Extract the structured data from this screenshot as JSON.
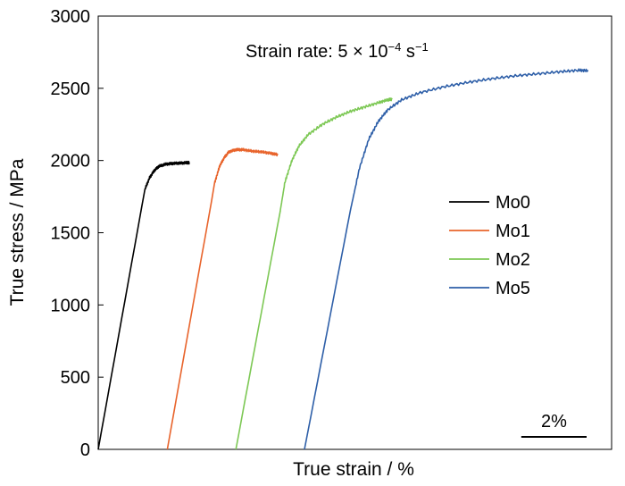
{
  "chart_data": {
    "type": "line",
    "annotation": {
      "prefix": "Strain rate: 5 × 10",
      "superscript": "−4",
      "unit": " s",
      "unit_superscript": "−1"
    },
    "xlabel": "True strain / %",
    "ylabel": "True stress / MPa",
    "ylim": [
      0,
      3000
    ],
    "xlim": [
      0,
      11
    ],
    "y_ticks": [
      0,
      500,
      1000,
      1500,
      2000,
      2500,
      3000
    ],
    "y_tick_labels": [
      "0",
      "500",
      "1000",
      "1500",
      "2000",
      "2500",
      "3000"
    ],
    "x_tick_labels_shown": false,
    "grid": false,
    "legend_position": "right",
    "scale_bar": {
      "label": "2%",
      "length": 1.4
    },
    "series": [
      {
        "name": "Mo0",
        "color": "#000000",
        "x": [
          0.0,
          1.0,
          1.1,
          1.2,
          1.3,
          1.45,
          1.6,
          1.75,
          1.9,
          1.95
        ],
        "y": [
          0,
          1800,
          1880,
          1930,
          1960,
          1975,
          1980,
          1982,
          1985,
          1985
        ]
      },
      {
        "name": "Mo1",
        "color": "#e8642c",
        "x": [
          1.48,
          2.5,
          2.6,
          2.7,
          2.8,
          2.95,
          3.1,
          3.3,
          3.5,
          3.7,
          3.85
        ],
        "y": [
          0,
          1850,
          1960,
          2020,
          2060,
          2075,
          2075,
          2065,
          2060,
          2050,
          2040
        ]
      },
      {
        "name": "Mo2",
        "color": "#7dc855",
        "x": [
          2.95,
          3.9,
          4.0,
          4.15,
          4.3,
          4.5,
          4.8,
          5.1,
          5.4,
          5.7,
          6.0,
          6.2,
          6.3
        ],
        "y": [
          0,
          1650,
          1850,
          2000,
          2100,
          2180,
          2250,
          2300,
          2340,
          2370,
          2400,
          2420,
          2425
        ]
      },
      {
        "name": "Mo5",
        "color": "#2e5fa8",
        "x": [
          4.42,
          5.4,
          5.6,
          5.8,
          6.0,
          6.2,
          6.5,
          6.9,
          7.4,
          7.9,
          8.4,
          8.9,
          9.4,
          9.9,
          10.3,
          10.5
        ],
        "y": [
          0,
          1650,
          1950,
          2150,
          2270,
          2350,
          2420,
          2470,
          2510,
          2540,
          2565,
          2585,
          2600,
          2615,
          2625,
          2622
        ]
      }
    ]
  }
}
